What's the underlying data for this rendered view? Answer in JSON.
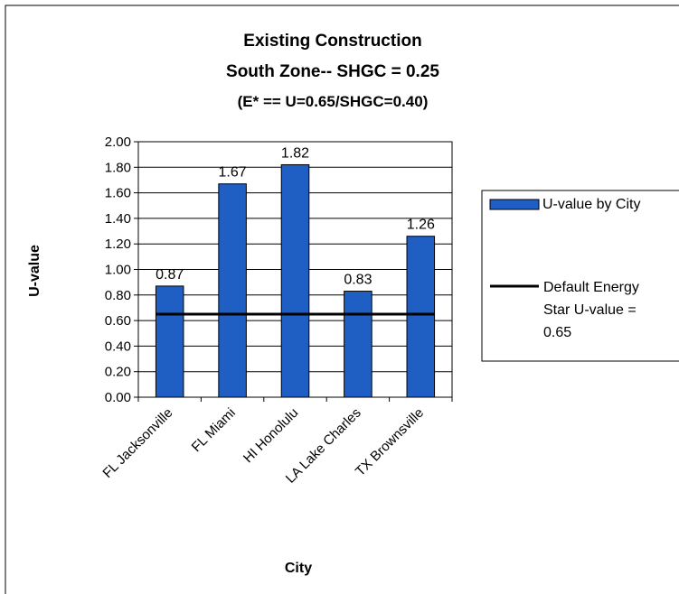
{
  "chart_data": {
    "type": "bar",
    "title": "Existing Construction",
    "subtitle": "South Zone-- SHGC = 0.25",
    "subtitle2": "(E* == U=0.65/SHGC=0.40)",
    "xlabel": "City",
    "ylabel": "U-value",
    "categories": [
      "FL Jacksonville",
      "FL Miami",
      "HI Honolulu",
      "LA Lake Charles",
      "TX Brownsville"
    ],
    "series": [
      {
        "name": "U-value by City",
        "values": [
          0.87,
          1.67,
          1.82,
          0.83,
          1.26
        ],
        "color": "#1f5fc4"
      }
    ],
    "data_labels": [
      "0.87",
      "1.67",
      "1.82",
      "0.83",
      "1.26"
    ],
    "reference_line": {
      "name": "Default Energy Star U-value = 0.65",
      "name_lines": [
        "Default Energy",
        "Star U-value =",
        "0.65"
      ],
      "value": 0.65,
      "color": "#000000"
    },
    "yticks": [
      "0.00",
      "0.20",
      "0.40",
      "0.60",
      "0.80",
      "1.00",
      "1.20",
      "1.40",
      "1.60",
      "1.80",
      "2.00"
    ],
    "ylim": [
      0,
      2
    ],
    "grid": "horizontal",
    "legend": "right"
  }
}
